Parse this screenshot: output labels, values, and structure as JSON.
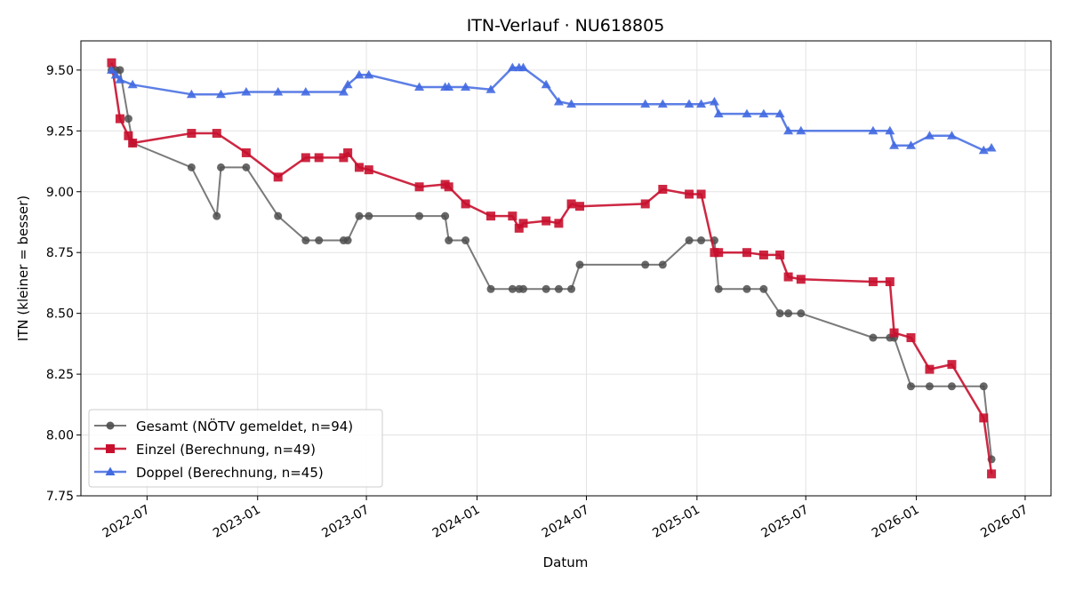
{
  "chart_data": {
    "type": "line",
    "title": "ITN-Verlauf · NU618805",
    "xlabel": "Datum",
    "ylabel": "ITN  (kleiner = besser)",
    "ylim": [
      7.75,
      9.62
    ],
    "xlim": [
      "2022-03-13",
      "2026-08-13"
    ],
    "yticks": [
      "7.75",
      "8.00",
      "8.25",
      "8.50",
      "8.75",
      "9.00",
      "9.25",
      "9.50"
    ],
    "xticks": [
      "2022-07",
      "2023-01",
      "2023-07",
      "2024-01",
      "2024-07",
      "2025-01",
      "2025-07",
      "2026-01",
      "2026-07"
    ],
    "grid": true,
    "legend_position": "lower-left",
    "series": [
      {
        "name": "Gesamt (NÖTV gemeldet, n=94)",
        "color": "#4d4d4d",
        "marker": "circle",
        "points": [
          [
            "2022-05-03",
            9.5
          ],
          [
            "2022-05-10",
            9.5
          ],
          [
            "2022-05-17",
            9.5
          ],
          [
            "2022-05-31",
            9.3
          ],
          [
            "2022-06-07",
            9.2
          ],
          [
            "2022-09-13",
            9.1
          ],
          [
            "2022-10-25",
            8.9
          ],
          [
            "2022-11-01",
            9.1
          ],
          [
            "2022-12-13",
            9.1
          ],
          [
            "2023-02-04",
            8.9
          ],
          [
            "2023-03-22",
            8.8
          ],
          [
            "2023-04-13",
            8.8
          ],
          [
            "2023-05-24",
            8.8
          ],
          [
            "2023-05-31",
            8.8
          ],
          [
            "2023-06-19",
            8.9
          ],
          [
            "2023-07-05",
            8.9
          ],
          [
            "2023-09-27",
            8.9
          ],
          [
            "2023-11-09",
            8.9
          ],
          [
            "2023-11-15",
            8.8
          ],
          [
            "2023-12-13",
            8.8
          ],
          [
            "2024-01-24",
            8.6
          ],
          [
            "2024-02-29",
            8.6
          ],
          [
            "2024-03-11",
            8.6
          ],
          [
            "2024-03-18",
            8.6
          ],
          [
            "2024-04-25",
            8.6
          ],
          [
            "2024-05-16",
            8.6
          ],
          [
            "2024-06-06",
            8.6
          ],
          [
            "2024-06-20",
            8.7
          ],
          [
            "2024-10-07",
            8.7
          ],
          [
            "2024-11-05",
            8.7
          ],
          [
            "2024-12-19",
            8.8
          ],
          [
            "2025-01-08",
            8.8
          ],
          [
            "2025-01-30",
            8.8
          ],
          [
            "2025-02-06",
            8.6
          ],
          [
            "2025-03-25",
            8.6
          ],
          [
            "2025-04-22",
            8.6
          ],
          [
            "2025-05-19",
            8.5
          ],
          [
            "2025-06-02",
            8.5
          ],
          [
            "2025-06-23",
            8.5
          ],
          [
            "2025-10-21",
            8.4
          ],
          [
            "2025-11-18",
            8.4
          ],
          [
            "2025-11-25",
            8.4
          ],
          [
            "2025-12-23",
            8.2
          ],
          [
            "2026-01-23",
            8.2
          ],
          [
            "2026-03-01",
            8.2
          ],
          [
            "2026-04-23",
            8.2
          ],
          [
            "2026-05-06",
            7.9
          ]
        ]
      },
      {
        "name": "Einzel (Berechnung, n=49)",
        "color": "#c8102e",
        "marker": "square",
        "points": [
          [
            "2022-05-03",
            9.53
          ],
          [
            "2022-05-17",
            9.3
          ],
          [
            "2022-05-31",
            9.23
          ],
          [
            "2022-06-07",
            9.2
          ],
          [
            "2022-09-13",
            9.24
          ],
          [
            "2022-10-25",
            9.24
          ],
          [
            "2022-12-13",
            9.16
          ],
          [
            "2023-02-04",
            9.06
          ],
          [
            "2023-03-22",
            9.14
          ],
          [
            "2023-04-13",
            9.14
          ],
          [
            "2023-05-24",
            9.14
          ],
          [
            "2023-05-31",
            9.16
          ],
          [
            "2023-06-19",
            9.1
          ],
          [
            "2023-07-05",
            9.09
          ],
          [
            "2023-09-27",
            9.02
          ],
          [
            "2023-11-09",
            9.03
          ],
          [
            "2023-11-15",
            9.02
          ],
          [
            "2023-12-13",
            8.95
          ],
          [
            "2024-01-24",
            8.9
          ],
          [
            "2024-02-29",
            8.9
          ],
          [
            "2024-03-11",
            8.85
          ],
          [
            "2024-03-18",
            8.87
          ],
          [
            "2024-04-25",
            8.88
          ],
          [
            "2024-05-16",
            8.87
          ],
          [
            "2024-06-06",
            8.95
          ],
          [
            "2024-06-20",
            8.94
          ],
          [
            "2024-10-07",
            8.95
          ],
          [
            "2024-11-05",
            9.01
          ],
          [
            "2024-12-19",
            8.99
          ],
          [
            "2025-01-08",
            8.99
          ],
          [
            "2025-01-30",
            8.75
          ],
          [
            "2025-02-06",
            8.75
          ],
          [
            "2025-03-25",
            8.75
          ],
          [
            "2025-04-22",
            8.74
          ],
          [
            "2025-05-19",
            8.74
          ],
          [
            "2025-06-02",
            8.65
          ],
          [
            "2025-06-23",
            8.64
          ],
          [
            "2025-10-21",
            8.63
          ],
          [
            "2025-11-18",
            8.63
          ],
          [
            "2025-11-25",
            8.42
          ],
          [
            "2025-12-23",
            8.4
          ],
          [
            "2026-01-23",
            8.27
          ],
          [
            "2026-03-01",
            8.29
          ],
          [
            "2026-04-23",
            8.07
          ],
          [
            "2026-05-06",
            7.84
          ]
        ]
      },
      {
        "name": "Doppel (Berechnung, n=45)",
        "color": "#4169e1",
        "marker": "triangle",
        "points": [
          [
            "2022-05-03",
            9.5
          ],
          [
            "2022-05-10",
            9.48
          ],
          [
            "2022-05-17",
            9.46
          ],
          [
            "2022-06-07",
            9.44
          ],
          [
            "2022-09-13",
            9.4
          ],
          [
            "2022-11-01",
            9.4
          ],
          [
            "2022-12-13",
            9.41
          ],
          [
            "2023-02-04",
            9.41
          ],
          [
            "2023-03-22",
            9.41
          ],
          [
            "2023-05-24",
            9.41
          ],
          [
            "2023-05-31",
            9.44
          ],
          [
            "2023-06-19",
            9.48
          ],
          [
            "2023-07-05",
            9.48
          ],
          [
            "2023-09-27",
            9.43
          ],
          [
            "2023-11-09",
            9.43
          ],
          [
            "2023-11-15",
            9.43
          ],
          [
            "2023-12-13",
            9.43
          ],
          [
            "2024-01-24",
            9.42
          ],
          [
            "2024-02-29",
            9.51
          ],
          [
            "2024-03-11",
            9.51
          ],
          [
            "2024-03-18",
            9.51
          ],
          [
            "2024-04-25",
            9.44
          ],
          [
            "2024-05-16",
            9.37
          ],
          [
            "2024-06-06",
            9.36
          ],
          [
            "2024-10-07",
            9.36
          ],
          [
            "2024-11-05",
            9.36
          ],
          [
            "2024-12-19",
            9.36
          ],
          [
            "2025-01-08",
            9.36
          ],
          [
            "2025-01-30",
            9.37
          ],
          [
            "2025-02-06",
            9.32
          ],
          [
            "2025-03-25",
            9.32
          ],
          [
            "2025-04-22",
            9.32
          ],
          [
            "2025-05-19",
            9.32
          ],
          [
            "2025-06-02",
            9.25
          ],
          [
            "2025-06-23",
            9.25
          ],
          [
            "2025-10-21",
            9.25
          ],
          [
            "2025-11-18",
            9.25
          ],
          [
            "2025-11-25",
            9.19
          ],
          [
            "2025-12-23",
            9.19
          ],
          [
            "2026-01-23",
            9.23
          ],
          [
            "2026-03-01",
            9.23
          ],
          [
            "2026-04-23",
            9.17
          ],
          [
            "2026-05-06",
            9.18
          ]
        ]
      }
    ]
  }
}
